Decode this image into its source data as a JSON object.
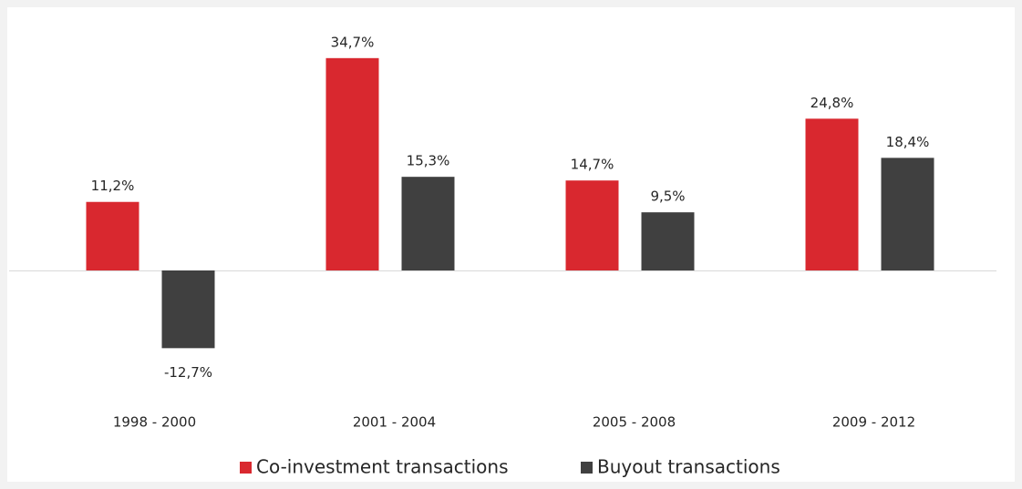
{
  "chart_data": {
    "type": "bar",
    "categories": [
      "1998 - 2000",
      "2001 - 2004",
      "2005 - 2008",
      "2009 - 2012"
    ],
    "series": [
      {
        "name": "Co-investment transactions",
        "color": "#d9282f",
        "values": [
          11.2,
          34.7,
          14.7,
          24.8
        ],
        "value_labels": [
          "11,2%",
          "34,7%",
          "14,7%",
          "24,8%"
        ]
      },
      {
        "name": "Buyout transactions",
        "color": "#404040",
        "values": [
          -12.7,
          15.3,
          9.5,
          18.4
        ],
        "value_labels": [
          "-12,7%",
          "15,3%",
          "9,5%",
          "18,4%"
        ]
      }
    ],
    "legend": "bottom"
  }
}
